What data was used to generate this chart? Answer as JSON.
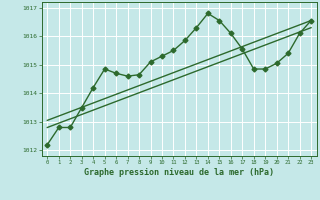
{
  "xlabel_label": "Graphe pression niveau de la mer (hPa)",
  "bg_color": "#c5e8e8",
  "grid_color": "#b0d8d8",
  "line_color": "#2d6a2d",
  "xlim": [
    -0.5,
    23.5
  ],
  "ylim": [
    1011.8,
    1017.2
  ],
  "yticks": [
    1012,
    1013,
    1014,
    1015,
    1016,
    1017
  ],
  "xticks": [
    0,
    1,
    2,
    3,
    4,
    5,
    6,
    7,
    8,
    9,
    10,
    11,
    12,
    13,
    14,
    15,
    16,
    17,
    18,
    19,
    20,
    21,
    22,
    23
  ],
  "series1_x": [
    0,
    1,
    2,
    3,
    4,
    5,
    6,
    7,
    8,
    9,
    10,
    11,
    12,
    13,
    14,
    15,
    16,
    17,
    18,
    19,
    20,
    21,
    22,
    23
  ],
  "series1_y": [
    1012.2,
    1012.8,
    1012.8,
    1013.5,
    1014.2,
    1014.85,
    1014.7,
    1014.6,
    1014.65,
    1015.1,
    1015.3,
    1015.5,
    1015.85,
    1016.3,
    1016.8,
    1016.55,
    1016.1,
    1015.55,
    1014.85,
    1014.85,
    1015.05,
    1015.4,
    1016.1,
    1016.55
  ],
  "series2_x": [
    0,
    23
  ],
  "series2_y": [
    1012.8,
    1016.3
  ],
  "series3_x": [
    0,
    23
  ],
  "series3_y": [
    1013.05,
    1016.55
  ],
  "marker": "D",
  "marker_size": 2.5,
  "line_width": 1.0
}
